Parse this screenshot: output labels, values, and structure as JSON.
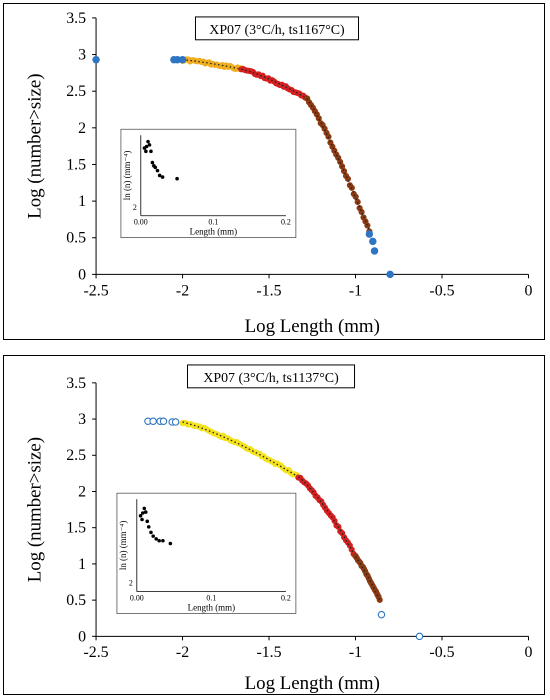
{
  "charts": [
    {
      "chart_data": {
        "type": "scatter",
        "title": "XP07 (3°C/h, ts1167°C)",
        "xlabel": "Log Length (mm)",
        "ylabel": "Log (number>size)",
        "xlim": [
          -2.5,
          0
        ],
        "ylim": [
          0,
          3.5
        ],
        "xticks": [
          "-2.5",
          "-2",
          "-1.5",
          "-1",
          "-0.5",
          "0"
        ],
        "yticks": [
          "0",
          "0.5",
          "1",
          "1.5",
          "2",
          "2.5",
          "3",
          "3.5"
        ],
        "grid": false,
        "series": [
          {
            "role": "excluded",
            "color": "#2e75c4",
            "marker": "filled",
            "points": [
              [
                -2.5,
                2.93
              ],
              [
                -2.05,
                2.93
              ],
              [
                -2.03,
                2.93
              ],
              [
                -2.0,
                2.93
              ],
              [
                -0.92,
                0.55
              ],
              [
                -0.9,
                0.45
              ],
              [
                -0.89,
                0.32
              ],
              [
                -0.8,
                0.0
              ]
            ]
          },
          {
            "role": "segment-1",
            "color": "#f0ad1f",
            "fit_line": true,
            "x_range": [
              -2.0,
              -1.66
            ],
            "y_range": [
              2.93,
              2.8
            ]
          },
          {
            "role": "segment-2",
            "color": "#d42020",
            "fit_line": true,
            "x_range": [
              -1.66,
              -1.28
            ],
            "y_range": [
              2.8,
              2.4
            ]
          },
          {
            "role": "segment-3",
            "color": "#8b3a12",
            "fit_line": true,
            "x_range": [
              -1.28,
              -0.92
            ],
            "y_range": [
              2.4,
              0.6
            ]
          }
        ],
        "inset": {
          "xlabel": "Length (mm)",
          "ylabel": "ln (n) (mm⁻⁴)",
          "xticks": [
            "0.00",
            "0.1",
            "0.2"
          ],
          "xlim": [
            0,
            0.2
          ],
          "ytick_label": "2",
          "points": [
            [
              0.005,
              0.84
            ],
            [
              0.007,
              0.8
            ],
            [
              0.008,
              0.86
            ],
            [
              0.01,
              0.92
            ],
            [
              0.012,
              0.88
            ],
            [
              0.014,
              0.8
            ],
            [
              0.016,
              0.66
            ],
            [
              0.018,
              0.62
            ],
            [
              0.02,
              0.6
            ],
            [
              0.023,
              0.56
            ],
            [
              0.026,
              0.5
            ],
            [
              0.03,
              0.48
            ],
            [
              0.05,
              0.46
            ]
          ]
        }
      }
    },
    {
      "chart_data": {
        "type": "scatter",
        "title": "XP07 (3°C/h, ts1137°C)",
        "xlabel": "Log Length (mm)",
        "ylabel": "Log (number>size)",
        "xlim": [
          -2.5,
          0
        ],
        "ylim": [
          0,
          3.5
        ],
        "xticks": [
          "-2.5",
          "-2",
          "-1.5",
          "-1",
          "-0.5",
          "0"
        ],
        "yticks": [
          "0",
          "0.5",
          "1",
          "1.5",
          "2",
          "2.5",
          "3",
          "3.5"
        ],
        "grid": false,
        "series": [
          {
            "role": "excluded",
            "color": "#2e75c4",
            "marker": "open",
            "points": [
              [
                -2.2,
                2.97
              ],
              [
                -2.17,
                2.97
              ],
              [
                -2.13,
                2.97
              ],
              [
                -2.11,
                2.97
              ],
              [
                -2.06,
                2.96
              ],
              [
                -2.04,
                2.96
              ],
              [
                -0.85,
                0.3
              ],
              [
                -0.63,
                0.0
              ]
            ]
          },
          {
            "role": "segment-1",
            "color": "#f4e21e",
            "fit_line": true,
            "x_range": [
              -2.0,
              -1.33
            ],
            "y_range": [
              2.96,
              2.2
            ]
          },
          {
            "role": "segment-2",
            "color": "#d42020",
            "fit_line": true,
            "x_range": [
              -1.33,
              -1.0
            ],
            "y_range": [
              2.2,
              1.1
            ]
          },
          {
            "role": "segment-3",
            "color": "#8b3a12",
            "fit_line": true,
            "x_range": [
              -1.0,
              -0.86
            ],
            "y_range": [
              1.1,
              0.5
            ]
          }
        ],
        "inset": {
          "xlabel": "Length (mm)",
          "ylabel": "ln (n) (mm⁻⁴)",
          "xticks": [
            "0.00",
            "0.1",
            "0.2"
          ],
          "xlim": [
            0,
            0.2
          ],
          "ytick_label": "2",
          "points": [
            [
              0.005,
              0.82
            ],
            [
              0.007,
              0.78
            ],
            [
              0.008,
              0.85
            ],
            [
              0.01,
              0.9
            ],
            [
              0.012,
              0.86
            ],
            [
              0.014,
              0.76
            ],
            [
              0.016,
              0.7
            ],
            [
              0.019,
              0.64
            ],
            [
              0.022,
              0.6
            ],
            [
              0.026,
              0.57
            ],
            [
              0.03,
              0.55
            ],
            [
              0.035,
              0.55
            ],
            [
              0.045,
              0.52
            ]
          ]
        }
      }
    }
  ]
}
